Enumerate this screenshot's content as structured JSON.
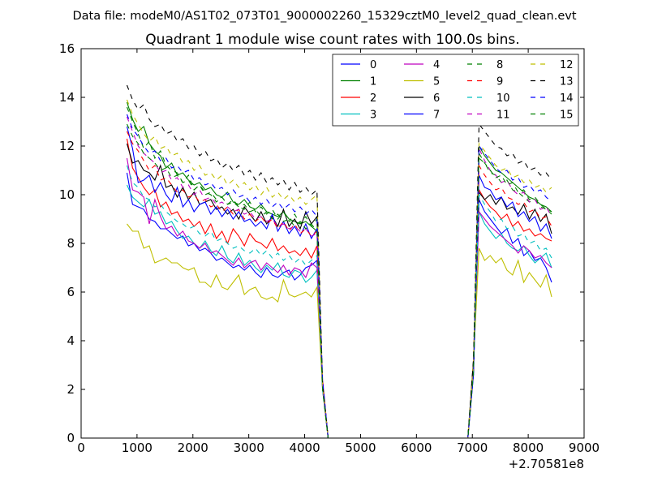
{
  "figure": {
    "suptitle": "Data file: modeM0/AS1T02_073T01_9000002260_15329cztM0_level2_quad_clean.evt",
    "offset_label": "+2.70581e8"
  },
  "chart_data": {
    "type": "line",
    "title": "Quadrant 1 module wise count rates with 100.0s bins.",
    "xlabel": "",
    "ylabel": "",
    "xlim": [
      0,
      9000
    ],
    "ylim": [
      0,
      16
    ],
    "x_offset": 270581000,
    "x_offset_label": "+2.70581e8",
    "xticks": [
      0,
      1000,
      2000,
      3000,
      4000,
      5000,
      6000,
      7000,
      8000,
      9000
    ],
    "yticks": [
      0,
      2,
      4,
      6,
      8,
      10,
      12,
      14,
      16
    ],
    "grid": false,
    "legend": {
      "placement": "top-right",
      "ncol": 4
    },
    "segments": [
      {
        "x_start": 820,
        "x_step": 100,
        "count": 35
      },
      {
        "x_start": 4320,
        "x_step": 100,
        "count": 27,
        "note_values": "zero"
      },
      {
        "x_start": 7020,
        "x_step": 100,
        "count": 14
      }
    ],
    "series": [
      {
        "name": "0",
        "color": "#0000ff",
        "dash": "solid",
        "level1": [
          10.9,
          9.6,
          9.5,
          9.4,
          9.0,
          8.9,
          8.6,
          8.6,
          8.4,
          8.2,
          8.3,
          7.9,
          8.0,
          7.7,
          7.8,
          7.6,
          7.3,
          7.4,
          7.2,
          7.0,
          7.1,
          6.9,
          7.1,
          6.8,
          6.6,
          7.0,
          6.7,
          6.6,
          6.8,
          6.9,
          6.5,
          6.7,
          7.0,
          7.1,
          7.3
        ],
        "level2": [
          9.8,
          9.3,
          9.0,
          8.7,
          8.4,
          8.6,
          8.0,
          8.2,
          7.5,
          7.7,
          7.3,
          7.4,
          7.0,
          6.4
        ]
      },
      {
        "name": "1",
        "color": "#008000",
        "dash": "solid",
        "level1": [
          13.8,
          13.1,
          12.6,
          12.8,
          12.1,
          11.8,
          11.6,
          11.1,
          11.3,
          10.8,
          10.9,
          10.6,
          10.4,
          10.5,
          10.2,
          10.3,
          10.0,
          9.9,
          10.1,
          9.7,
          9.6,
          9.8,
          9.5,
          9.4,
          9.6,
          9.3,
          9.2,
          9.1,
          9.3,
          9.0,
          8.9,
          8.8,
          8.9,
          8.7,
          8.5
        ],
        "level2": [
          12.0,
          11.6,
          11.3,
          11.0,
          10.9,
          10.7,
          10.5,
          10.3,
          10.1,
          9.9,
          9.8,
          9.6,
          9.5,
          9.3
        ]
      },
      {
        "name": "2",
        "color": "#ff0000",
        "dash": "solid",
        "level1": [
          12.3,
          11.1,
          10.7,
          10.3,
          10.0,
          10.2,
          9.5,
          9.7,
          9.2,
          9.3,
          8.9,
          9.0,
          8.7,
          8.9,
          8.4,
          8.8,
          8.2,
          8.5,
          8.0,
          8.6,
          8.3,
          7.9,
          8.4,
          8.1,
          8.0,
          7.8,
          8.2,
          7.7,
          7.9,
          7.6,
          7.7,
          7.5,
          7.8,
          7.4,
          7.9
        ],
        "level2": [
          10.2,
          9.8,
          9.5,
          9.3,
          9.0,
          9.2,
          8.7,
          8.9,
          8.5,
          8.6,
          8.3,
          8.4,
          8.2,
          8.1
        ]
      },
      {
        "name": "3",
        "color": "#00bfbf",
        "dash": "solid",
        "level1": [
          10.4,
          9.9,
          9.7,
          9.5,
          9.8,
          9.2,
          9.3,
          8.8,
          8.9,
          8.5,
          8.2,
          8.3,
          8.0,
          7.8,
          8.1,
          7.7,
          7.5,
          7.9,
          7.4,
          7.2,
          7.6,
          7.1,
          7.3,
          7.0,
          6.8,
          7.1,
          6.9,
          7.2,
          6.7,
          6.6,
          6.9,
          6.8,
          6.4,
          6.6,
          6.9
        ],
        "level2": [
          9.3,
          8.8,
          8.5,
          8.2,
          8.4,
          8.0,
          7.8,
          7.7,
          7.9,
          7.5,
          7.2,
          7.4,
          7.6,
          7.0
        ]
      },
      {
        "name": "4",
        "color": "#bf00bf",
        "dash": "solid",
        "level1": [
          11.5,
          10.2,
          10.1,
          9.9,
          8.8,
          9.8,
          9.1,
          8.6,
          8.7,
          8.3,
          8.5,
          8.1,
          8.0,
          7.8,
          8.0,
          7.6,
          7.7,
          7.5,
          7.3,
          7.1,
          7.4,
          7.0,
          7.2,
          7.3,
          6.9,
          7.2,
          7.0,
          6.8,
          7.1,
          6.7,
          7.0,
          6.9,
          6.6,
          7.2,
          7.0
        ],
        "level2": [
          9.3,
          9.0,
          8.7,
          8.5,
          8.3,
          8.1,
          7.9,
          7.6,
          7.9,
          7.7,
          7.4,
          7.5,
          7.2,
          7.0
        ]
      },
      {
        "name": "5",
        "color": "#bfbf00",
        "dash": "solid",
        "level1": [
          8.8,
          8.5,
          8.5,
          7.8,
          7.9,
          7.2,
          7.3,
          7.4,
          7.2,
          7.2,
          7.0,
          6.9,
          7.0,
          6.4,
          6.4,
          6.2,
          6.7,
          6.2,
          6.1,
          6.4,
          6.7,
          5.9,
          6.1,
          6.2,
          5.8,
          5.7,
          5.8,
          5.6,
          6.5,
          5.9,
          5.8,
          5.9,
          6.0,
          5.8,
          6.2
        ],
        "level2": [
          7.8,
          7.3,
          7.5,
          7.2,
          7.4,
          6.9,
          6.7,
          7.3,
          6.4,
          6.8,
          6.5,
          6.2,
          6.7,
          5.8
        ]
      },
      {
        "name": "6",
        "color": "#000000",
        "dash": "solid",
        "level1": [
          12.1,
          11.3,
          11.4,
          11.0,
          10.9,
          10.6,
          11.2,
          10.3,
          10.4,
          9.9,
          10.3,
          9.8,
          10.1,
          9.6,
          9.7,
          9.8,
          9.4,
          9.5,
          9.2,
          9.4,
          9.0,
          9.5,
          9.2,
          8.9,
          9.3,
          8.8,
          9.1,
          8.7,
          9.4,
          8.7,
          9.0,
          8.6,
          9.3,
          8.8,
          9.1
        ],
        "level2": [
          10.1,
          9.8,
          10.0,
          9.6,
          9.9,
          9.4,
          9.5,
          9.2,
          9.6,
          9.0,
          9.4,
          8.9,
          9.2,
          8.4
        ]
      },
      {
        "name": "7",
        "color": "#0000ff",
        "dash": "solid",
        "level1": [
          12.8,
          11.9,
          10.5,
          10.6,
          10.8,
          10.1,
          10.5,
          10.0,
          9.7,
          10.3,
          9.5,
          9.8,
          9.3,
          9.6,
          9.7,
          9.2,
          9.5,
          9.1,
          9.4,
          9.0,
          9.3,
          8.9,
          9.0,
          8.7,
          8.9,
          8.6,
          9.2,
          8.5,
          8.9,
          8.4,
          8.7,
          8.3,
          8.8,
          8.2,
          8.6
        ],
        "level2": [
          10.8,
          10.3,
          10.2,
          9.8,
          9.9,
          9.5,
          9.7,
          9.1,
          9.3,
          8.9,
          9.1,
          8.5,
          8.8,
          8.2
        ]
      },
      {
        "name": "8",
        "color": "#008000",
        "dash": "dashed",
        "level1": [
          13.6,
          13.0,
          12.5,
          11.9,
          12.2,
          11.5,
          11.8,
          11.2,
          11.0,
          10.9,
          10.5,
          10.8,
          10.2,
          10.4,
          10.1,
          10.0,
          9.7,
          9.9,
          9.6,
          9.8,
          9.5,
          9.4,
          9.7,
          9.3,
          9.5,
          9.2,
          9.4,
          9.0,
          9.3,
          8.9,
          9.2,
          8.8,
          9.1,
          8.7,
          9.0
        ],
        "level2": [
          11.5,
          11.3,
          10.9,
          10.8,
          10.5,
          10.6,
          10.2,
          10.1,
          9.9,
          9.7,
          9.8,
          9.5,
          9.4,
          9.2
        ]
      },
      {
        "name": "9",
        "color": "#ff0000",
        "dash": "dashed",
        "level1": [
          12.6,
          12.1,
          11.8,
          11.4,
          11.0,
          11.2,
          10.6,
          10.7,
          10.4,
          10.1,
          10.2,
          9.9,
          10.0,
          9.7,
          9.8,
          9.5,
          9.6,
          9.3,
          9.5,
          9.2,
          9.4,
          9.0,
          9.2,
          8.9,
          9.1,
          8.8,
          9.0,
          8.6,
          8.9,
          8.5,
          8.8,
          8.4,
          8.6,
          8.3,
          8.5
        ],
        "level2": [
          11.2,
          10.8,
          10.5,
          10.2,
          10.3,
          9.9,
          9.8,
          9.6,
          9.7,
          9.3,
          9.4,
          9.0,
          9.1,
          8.7
        ]
      },
      {
        "name": "10",
        "color": "#00bfbf",
        "dash": "dashed",
        "level1": [
          11.2,
          10.5,
          10.3,
          9.9,
          9.8,
          9.5,
          9.6,
          9.3,
          9.1,
          8.9,
          8.8,
          8.6,
          8.7,
          8.4,
          8.3,
          8.5,
          8.1,
          8.2,
          8.0,
          7.8,
          7.9,
          7.7,
          7.6,
          7.8,
          7.5,
          7.7,
          7.4,
          7.6,
          7.3,
          7.5,
          7.2,
          7.4,
          7.1,
          7.3,
          7.5
        ],
        "level2": [
          10.0,
          9.6,
          9.3,
          8.9,
          9.0,
          8.6,
          8.7,
          8.3,
          8.4,
          8.0,
          8.1,
          7.7,
          7.8,
          7.4
        ]
      },
      {
        "name": "11",
        "color": "#bf00bf",
        "dash": "dashed",
        "level1": [
          13.2,
          12.6,
          12.0,
          11.7,
          11.5,
          11.3,
          10.9,
          11.0,
          10.6,
          10.7,
          10.3,
          10.4,
          10.0,
          10.2,
          9.8,
          9.9,
          9.6,
          9.7,
          9.5,
          9.3,
          9.4,
          9.2,
          9.3,
          9.0,
          9.1,
          8.9,
          9.0,
          8.7,
          8.8,
          8.6,
          8.7,
          8.5,
          8.6,
          8.3,
          8.4
        ],
        "level2": [
          11.9,
          11.4,
          11.0,
          10.8,
          10.5,
          10.6,
          10.2,
          10.0,
          10.1,
          9.7,
          9.8,
          9.4,
          9.5,
          9.1
        ]
      },
      {
        "name": "12",
        "color": "#bfbf00",
        "dash": "dashed",
        "level1": [
          13.9,
          13.3,
          12.9,
          12.5,
          12.2,
          12.4,
          11.9,
          12.0,
          11.6,
          11.7,
          11.3,
          11.4,
          11.0,
          11.2,
          10.8,
          10.9,
          10.6,
          10.8,
          10.4,
          10.6,
          10.3,
          10.5,
          10.2,
          10.4,
          10.0,
          10.3,
          9.9,
          10.1,
          9.8,
          10.0,
          9.7,
          9.9,
          9.6,
          9.8,
          10.0
        ],
        "level2": [
          12.1,
          11.8,
          11.5,
          11.2,
          11.0,
          11.1,
          10.7,
          10.8,
          10.5,
          10.6,
          10.3,
          10.4,
          10.1,
          10.3
        ]
      },
      {
        "name": "13",
        "color": "#000000",
        "dash": "dashed",
        "level1": [
          14.5,
          13.9,
          13.5,
          13.7,
          13.1,
          12.8,
          12.9,
          12.5,
          12.6,
          12.2,
          12.3,
          11.9,
          12.0,
          11.6,
          11.8,
          11.4,
          11.5,
          11.1,
          11.3,
          11.0,
          11.2,
          10.8,
          11.0,
          10.6,
          10.9,
          10.5,
          10.7,
          10.4,
          10.6,
          10.2,
          10.5,
          10.1,
          10.3,
          10.0,
          10.2
        ],
        "level2": [
          12.9,
          12.6,
          12.3,
          12.0,
          11.9,
          11.6,
          11.7,
          11.3,
          11.4,
          11.0,
          11.1,
          10.8,
          10.9,
          10.6
        ]
      },
      {
        "name": "14",
        "color": "#0000ff",
        "dash": "dashed",
        "level1": [
          13.3,
          12.7,
          12.4,
          12.0,
          11.7,
          11.8,
          11.4,
          11.5,
          11.1,
          11.2,
          10.9,
          11.0,
          10.6,
          10.7,
          10.4,
          10.5,
          10.2,
          10.3,
          10.0,
          10.2,
          9.9,
          10.0,
          9.7,
          9.9,
          9.6,
          9.8,
          9.5,
          9.7,
          9.4,
          9.6,
          9.3,
          9.5,
          9.2,
          9.4,
          9.1
        ],
        "level2": [
          12.0,
          11.7,
          11.4,
          11.1,
          10.9,
          11.0,
          10.6,
          10.7,
          10.3,
          10.4,
          10.1,
          10.2,
          9.9,
          9.7
        ]
      },
      {
        "name": "15",
        "color": "#008000",
        "dash": "dashed",
        "level1": [
          12.9,
          12.4,
          12.1,
          11.7,
          11.5,
          11.3,
          11.0,
          11.1,
          10.7,
          10.8,
          10.5,
          10.6,
          10.2,
          10.4,
          10.0,
          10.1,
          9.8,
          9.9,
          9.6,
          9.7,
          9.5,
          9.6,
          9.3,
          9.4,
          9.1,
          9.3,
          9.0,
          9.2,
          8.9,
          9.0,
          8.7,
          8.9,
          8.6,
          8.8,
          8.5
        ],
        "level2": [
          11.7,
          11.3,
          11.0,
          10.7,
          10.8,
          10.4,
          10.5,
          10.1,
          10.2,
          9.8,
          9.9,
          9.6,
          9.4,
          9.3
        ]
      }
    ]
  }
}
